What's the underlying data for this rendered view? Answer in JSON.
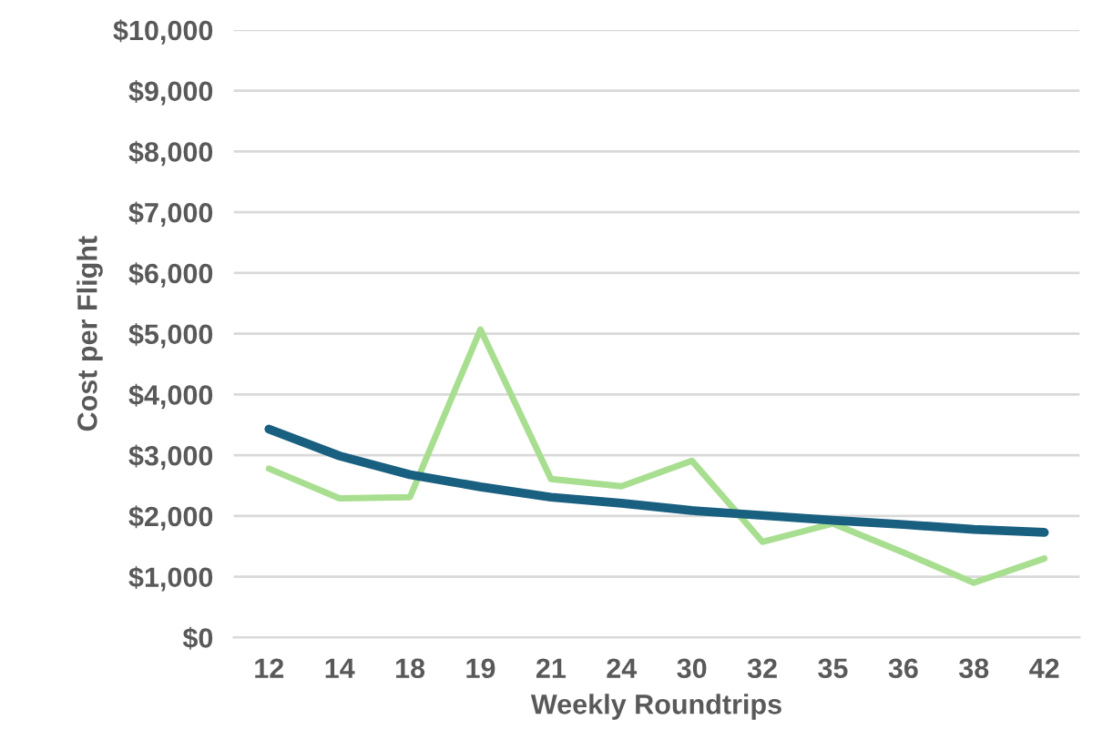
{
  "chart_data": {
    "type": "line",
    "xlabel": "Weekly Roundtrips",
    "ylabel": "Cost per Flight",
    "categories": [
      "12",
      "14",
      "18",
      "19",
      "21",
      "24",
      "30",
      "32",
      "35",
      "36",
      "38",
      "42"
    ],
    "series": [
      {
        "color": "#a8de90",
        "values": [
          2780,
          2290,
          2310,
          5070,
          2610,
          2490,
          2910,
          1575,
          1875,
          1400,
          900,
          1300
        ]
      },
      {
        "color": "#195f80",
        "values": [
          3430,
          2990,
          2680,
          2480,
          2310,
          2210,
          2090,
          2010,
          1930,
          1860,
          1780,
          1730
        ]
      }
    ],
    "ylim": [
      0,
      10000
    ],
    "yticks": [
      {
        "value": 0,
        "label": "$0"
      },
      {
        "value": 1000,
        "label": "$1,000"
      },
      {
        "value": 2000,
        "label": "$2,000"
      },
      {
        "value": 3000,
        "label": "$3,000"
      },
      {
        "value": 4000,
        "label": "$4,000"
      },
      {
        "value": 5000,
        "label": "$5,000"
      },
      {
        "value": 6000,
        "label": "$6,000"
      },
      {
        "value": 7000,
        "label": "$7,000"
      },
      {
        "value": 8000,
        "label": "$8,000"
      },
      {
        "value": 9000,
        "label": "$9,000"
      },
      {
        "value": 10000,
        "label": "$10,000"
      }
    ],
    "grid": "y",
    "line_style": "solid",
    "marker": "none"
  }
}
